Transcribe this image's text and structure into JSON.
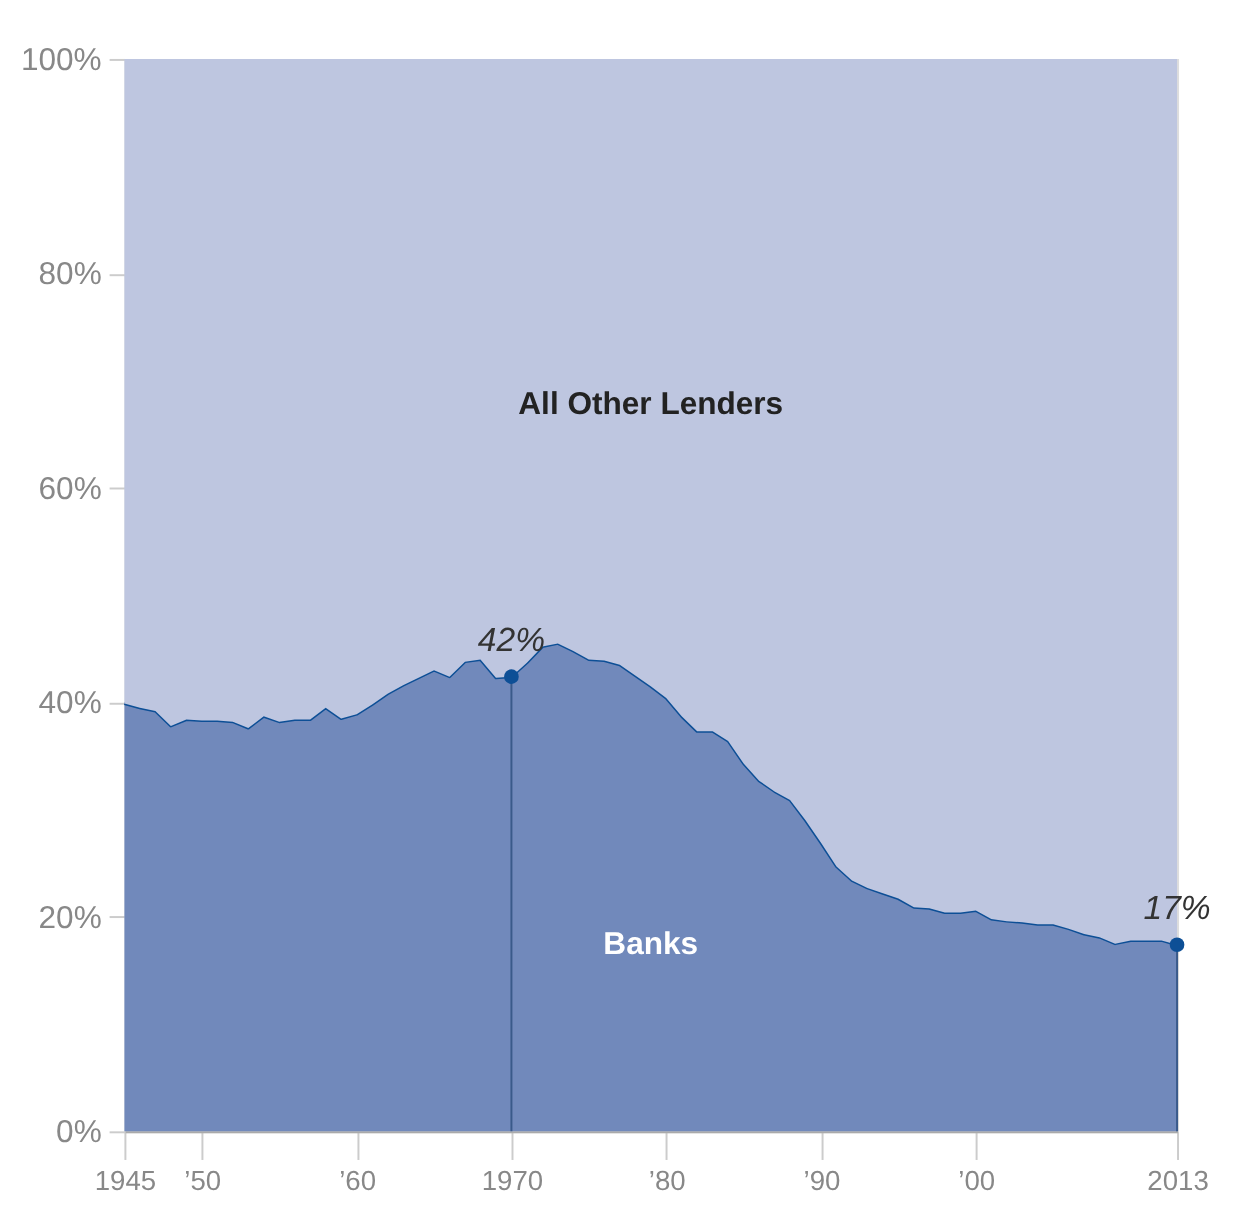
{
  "chart_data": {
    "type": "area",
    "stacked": true,
    "x": [
      1945,
      1946,
      1947,
      1948,
      1949,
      1950,
      1951,
      1952,
      1953,
      1954,
      1955,
      1956,
      1957,
      1958,
      1959,
      1960,
      1961,
      1962,
      1963,
      1964,
      1965,
      1966,
      1967,
      1968,
      1969,
      1970,
      1971,
      1972,
      1973,
      1974,
      1975,
      1976,
      1977,
      1978,
      1979,
      1980,
      1981,
      1982,
      1983,
      1984,
      1985,
      1986,
      1987,
      1988,
      1989,
      1990,
      1991,
      1992,
      1993,
      1994,
      1995,
      1996,
      1997,
      1998,
      1999,
      2000,
      2001,
      2002,
      2003,
      2004,
      2005,
      2006,
      2007,
      2008,
      2009,
      2010,
      2011,
      2012,
      2013
    ],
    "series": [
      {
        "name": "Banks",
        "color": "#7189bb",
        "values": [
          39.9,
          39.5,
          39.2,
          37.8,
          38.4,
          38.3,
          38.3,
          38.2,
          37.6,
          38.7,
          38.2,
          38.4,
          38.4,
          39.5,
          38.5,
          38.9,
          39.8,
          40.8,
          41.6,
          42.3,
          43.0,
          42.4,
          43.8,
          44.0,
          42.3,
          42.4,
          43.7,
          45.2,
          45.5,
          44.8,
          44.0,
          43.9,
          43.5,
          42.5,
          41.5,
          40.4,
          38.7,
          37.3,
          37.3,
          36.4,
          34.3,
          32.7,
          31.7,
          30.9,
          29.0,
          26.9,
          24.7,
          23.4,
          22.7,
          22.2,
          21.7,
          20.9,
          20.8,
          20.4,
          20.4,
          20.6,
          19.8,
          19.6,
          19.5,
          19.3,
          19.3,
          18.9,
          18.4,
          18.1,
          17.5,
          17.8,
          17.8,
          17.8,
          17.4
        ]
      },
      {
        "name": "All Other Lenders",
        "color": "#bec6e0",
        "values": [
          60.1,
          60.5,
          60.8,
          62.2,
          61.6,
          61.7,
          61.7,
          61.8,
          62.4,
          61.3,
          61.8,
          61.6,
          61.6,
          60.5,
          61.5,
          61.1,
          60.2,
          59.2,
          58.4,
          57.7,
          57.0,
          57.6,
          56.2,
          56.0,
          57.7,
          57.6,
          56.3,
          54.8,
          54.5,
          55.2,
          56.0,
          56.1,
          56.5,
          57.5,
          58.5,
          59.6,
          61.3,
          62.7,
          62.7,
          63.6,
          65.7,
          67.3,
          68.3,
          69.1,
          71.0,
          73.1,
          75.3,
          76.6,
          77.3,
          77.8,
          78.3,
          79.1,
          79.2,
          79.6,
          79.6,
          79.4,
          80.2,
          80.4,
          80.5,
          80.7,
          80.7,
          81.1,
          81.6,
          81.9,
          82.5,
          82.2,
          82.2,
          82.2,
          82.6
        ]
      }
    ],
    "xlim": [
      1945,
      2013
    ],
    "xticks": [
      1945,
      {
        "value": 1950,
        "label": "’50"
      },
      {
        "value": 1960,
        "label": "’60"
      },
      1970,
      {
        "value": 1980,
        "label": "’80"
      },
      {
        "value": 1990,
        "label": "’90"
      },
      {
        "value": 2000,
        "label": "’00"
      },
      2013
    ],
    "ylim": [
      0,
      100
    ],
    "yticks": [
      {
        "value": 0,
        "label": "0%"
      },
      {
        "value": 20,
        "label": "20%"
      },
      {
        "value": 40,
        "label": "40%"
      },
      {
        "value": 60,
        "label": "60%"
      },
      {
        "value": 80,
        "label": "80%"
      },
      {
        "value": 100,
        "label": "100%"
      }
    ],
    "annotations": [
      {
        "text": "42%",
        "x": 1970,
        "y": 42.4
      },
      {
        "text": "17%",
        "x": 2013,
        "y": 17.4
      }
    ]
  }
}
